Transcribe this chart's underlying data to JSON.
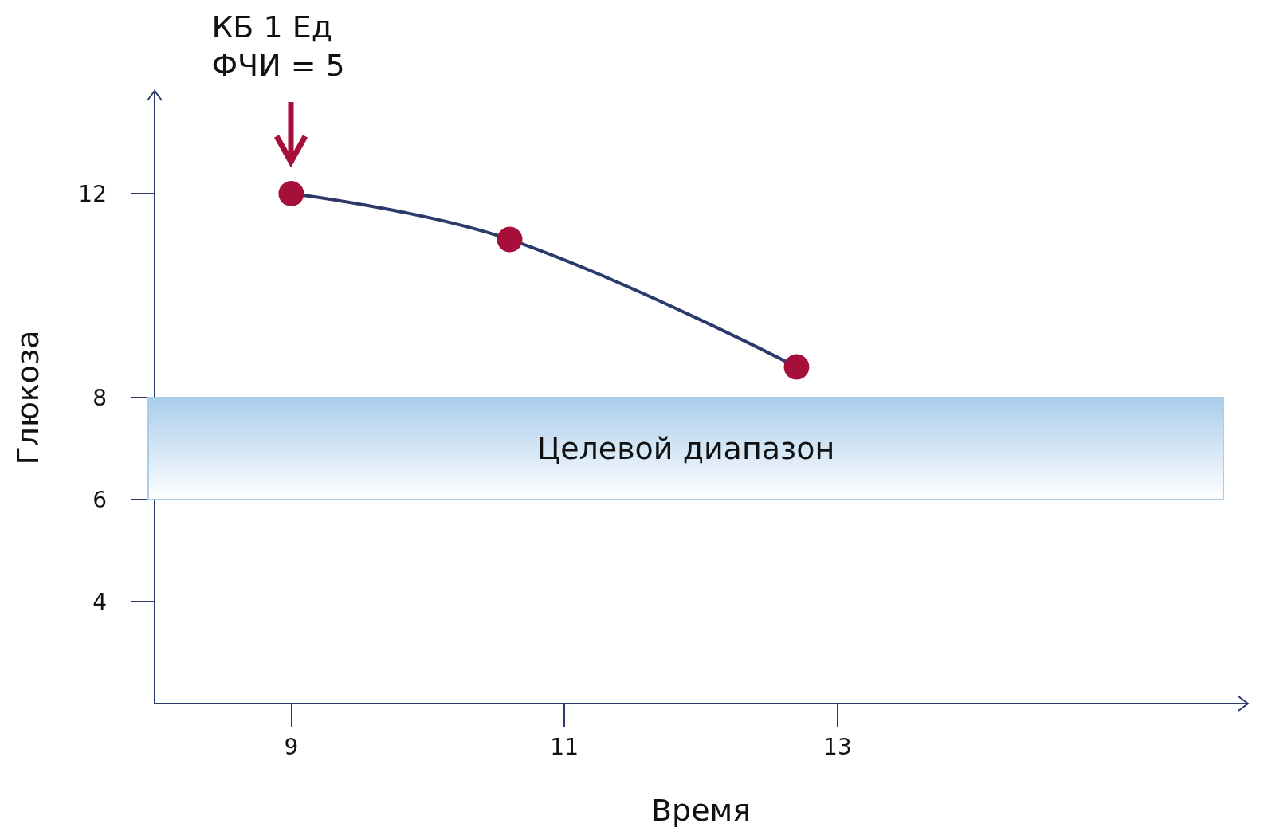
{
  "chart_data": {
    "type": "line",
    "xlabel": "Время",
    "ylabel": "Глюкоза",
    "x": [
      9,
      10.6,
      12.7
    ],
    "series": [
      {
        "color": "#a50f3a",
        "values": [
          12,
          11.1,
          8.6
        ]
      }
    ],
    "xlim": [
      8,
      16
    ],
    "xticks": [
      9,
      11,
      13
    ],
    "ylim": [
      2,
      14
    ],
    "yticks": [
      4,
      6,
      8,
      12
    ],
    "marker": "circle",
    "bands": [
      {
        "axis": "y",
        "from": 6,
        "to": 8,
        "label": "Целевой диапазон",
        "color": "#a9cdeb"
      }
    ],
    "annotations": [
      "КБ 1 Ед\nФЧИ = 5"
    ]
  }
}
